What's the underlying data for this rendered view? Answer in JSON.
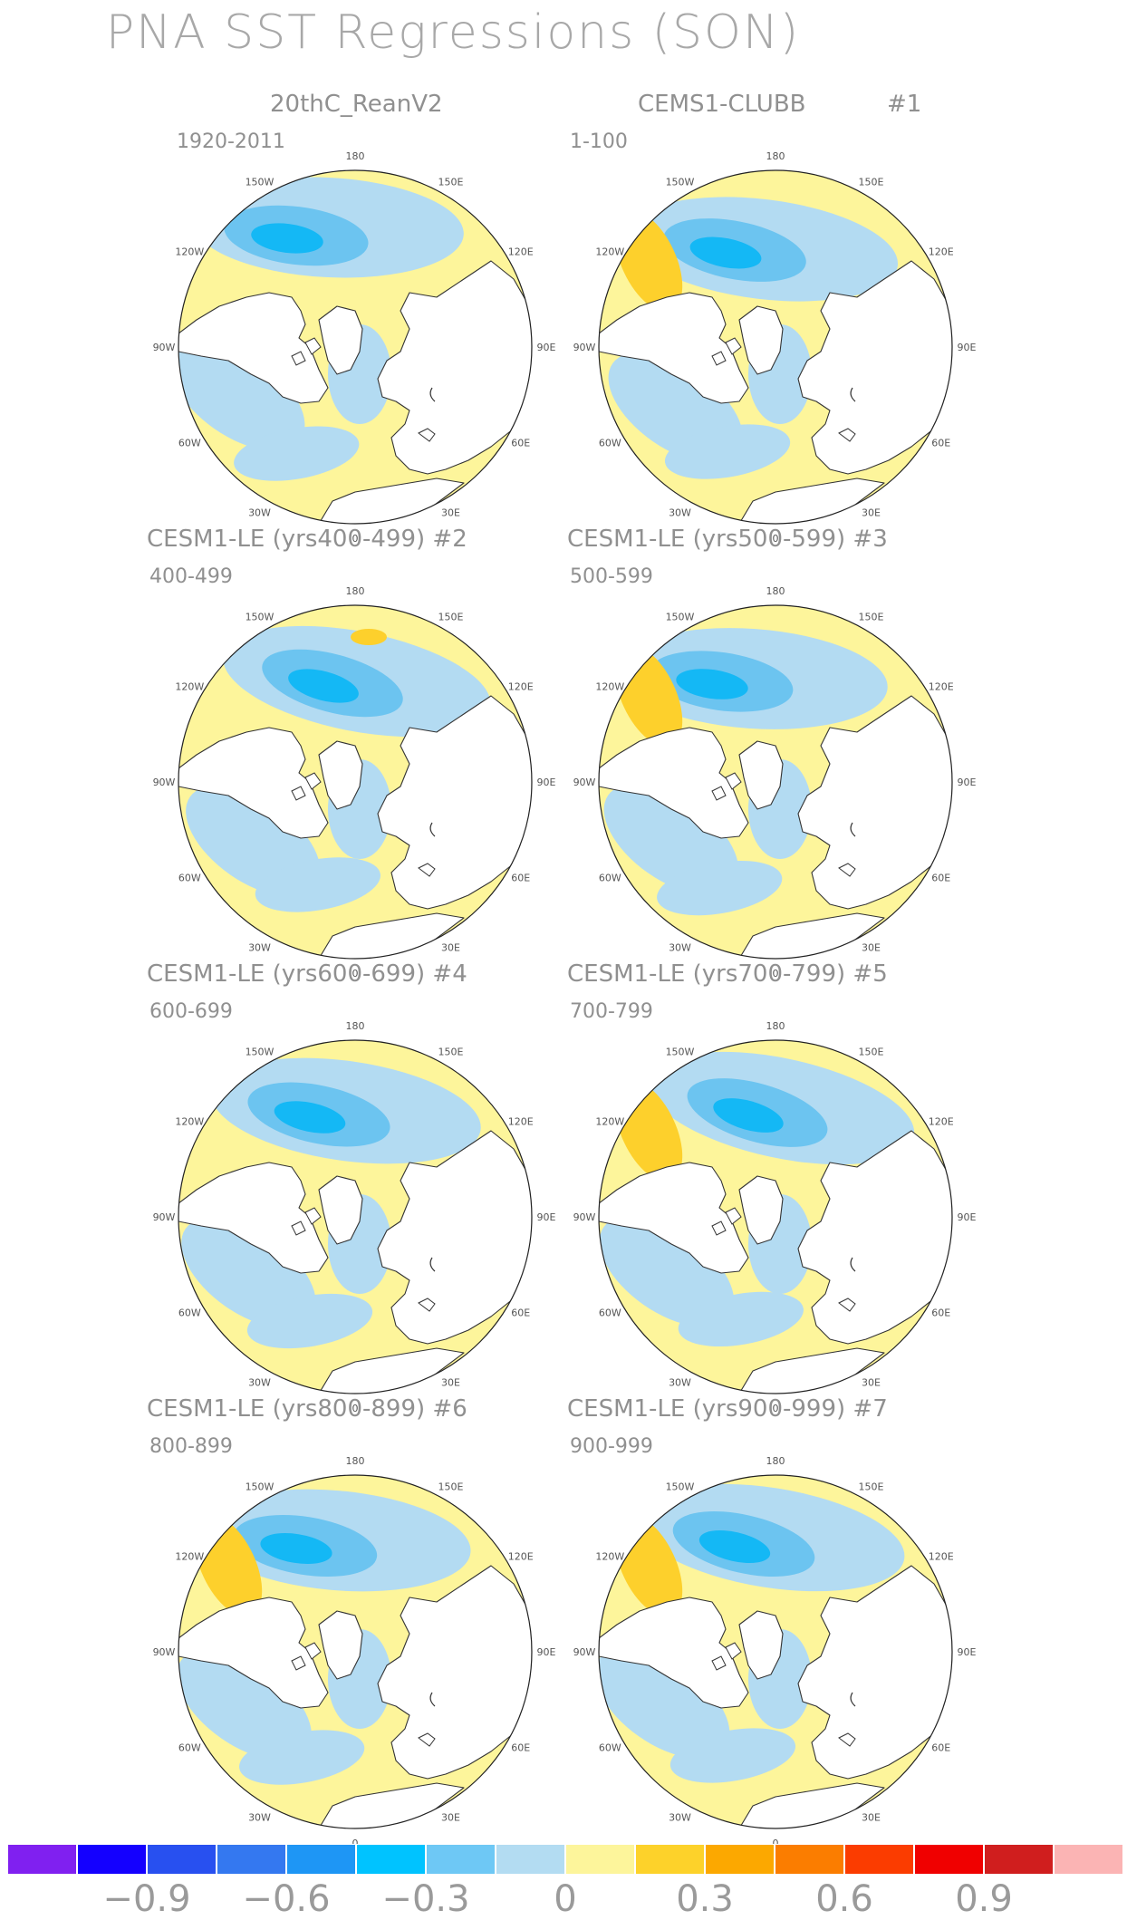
{
  "title": "PNA SST Regressions (SON)",
  "colors": {
    "ocean_background": "#fdf59b",
    "land": "#ffffff",
    "coast": "#333333",
    "neg_light": "#b3dbf2",
    "neg_mid": "#6cc4f0",
    "neg_strong": "#14b8f5",
    "pos_mid": "#fdd02c"
  },
  "panels": [
    {
      "name": "20thC_ReanV2",
      "number": "",
      "years": "1920-2011"
    },
    {
      "name": "CEMS1-CLUBB",
      "number": "#1",
      "years": "1-100"
    },
    {
      "name": "CESM1-LE (yrs400-499)",
      "number": "#2",
      "years": "400-499"
    },
    {
      "name": "CESM1-LE (yrs500-599)",
      "number": "#3",
      "years": "500-599"
    },
    {
      "name": "CESM1-LE (yrs600-699)",
      "number": "#4",
      "years": "600-699"
    },
    {
      "name": "CESM1-LE (yrs700-799)",
      "number": "#5",
      "years": "700-799"
    },
    {
      "name": "CESM1-LE (yrs800-899)",
      "number": "#6",
      "years": "800-899"
    },
    {
      "name": "CESM1-LE (yrs900-999)",
      "number": "#7",
      "years": "900-999"
    }
  ],
  "longitude_labels": [
    "180",
    "150E",
    "120E",
    "90E",
    "60E",
    "30E",
    "0",
    "30W",
    "60W",
    "90W",
    "120W",
    "150W"
  ],
  "colorbar": {
    "colors": [
      "#8020f0",
      "#1400ff",
      "#2850f0",
      "#3478f0",
      "#1e96f5",
      "#00c3ff",
      "#6ec8f5",
      "#b3dcf2",
      "#fdf59b",
      "#fdd22a",
      "#fca800",
      "#fb7d00",
      "#fb3c00",
      "#f00000",
      "#d01e1e",
      "#fbb4b4"
    ],
    "labels": [
      {
        "text": "−0.9",
        "boundary": 1
      },
      {
        "text": "−0.6",
        "boundary": 3
      },
      {
        "text": "−0.3",
        "boundary": 5
      },
      {
        "text": "0",
        "boundary": 7
      },
      {
        "text": "0.3",
        "boundary": 9
      },
      {
        "text": "0.6",
        "boundary": 11
      },
      {
        "text": "0.9",
        "boundary": 13
      }
    ]
  }
}
